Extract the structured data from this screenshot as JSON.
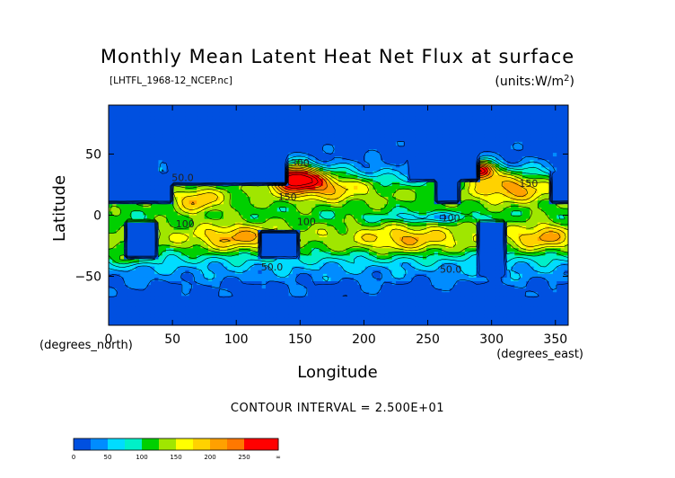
{
  "title": "Monthly Mean Latent Heat Net Flux at surface",
  "source_label": "[LHTFL_1968-12_NCEP.nc]",
  "units_label": "(units:W/m^2)",
  "contour_interval_label": "CONTOUR INTERVAL = 2.500E+01",
  "chart_data": {
    "type": "heatmap",
    "title": "Monthly Mean Latent Heat Net Flux at surface",
    "xlabel": "Longitude",
    "ylabel": "Latitude",
    "x_unit_label": "(degrees_east)",
    "y_unit_label": "(degrees_north)",
    "xlim": [
      0,
      360
    ],
    "ylim": [
      -90,
      90
    ],
    "x_ticks": [
      0,
      50,
      100,
      150,
      200,
      250,
      300,
      350
    ],
    "x_tick_labels": [
      "0",
      "50",
      "100",
      "150",
      "200",
      "250",
      "300",
      "350"
    ],
    "y_ticks": [
      50,
      0,
      -50
    ],
    "y_tick_labels": [
      "50",
      "0",
      "−50"
    ],
    "contour_interval": 25,
    "contour_labels": [
      {
        "text": "300",
        "lon": 150,
        "lat": 40
      },
      {
        "text": "50.0",
        "lon": 58,
        "lat": 28
      },
      {
        "text": "150",
        "lon": 140,
        "lat": 12
      },
      {
        "text": "100",
        "lon": 60,
        "lat": -10
      },
      {
        "text": "100",
        "lon": 155,
        "lat": -8
      },
      {
        "text": "100",
        "lon": 268,
        "lat": -5
      },
      {
        "text": "150",
        "lon": 329,
        "lat": 23
      },
      {
        "text": "50.0",
        "lon": 128,
        "lat": -45
      },
      {
        "text": "50.0",
        "lon": 268,
        "lat": -47
      }
    ],
    "colorbar": {
      "bins": [
        {
          "range": [
            0,
            25
          ],
          "color": "#0050e0"
        },
        {
          "range": [
            25,
            50
          ],
          "color": "#008cff"
        },
        {
          "range": [
            50,
            75
          ],
          "color": "#00dcff"
        },
        {
          "range": [
            75,
            100
          ],
          "color": "#00f0c8"
        },
        {
          "range": [
            100,
            125
          ],
          "color": "#00d000"
        },
        {
          "range": [
            125,
            150
          ],
          "color": "#a0e600"
        },
        {
          "range": [
            150,
            175
          ],
          "color": "#ffff00"
        },
        {
          "range": [
            175,
            200
          ],
          "color": "#ffd200"
        },
        {
          "range": [
            200,
            225
          ],
          "color": "#ffa000"
        },
        {
          "range": [
            225,
            250
          ],
          "color": "#ff7800"
        },
        {
          "range": [
            250,
            275
          ],
          "color": "#ff0000"
        },
        {
          "range": [
            275,
            "inf"
          ],
          "color": "#ff0000"
        }
      ],
      "tick_labels": [
        "0",
        "50",
        "100",
        "150",
        "200",
        "250",
        "∞"
      ]
    }
  }
}
